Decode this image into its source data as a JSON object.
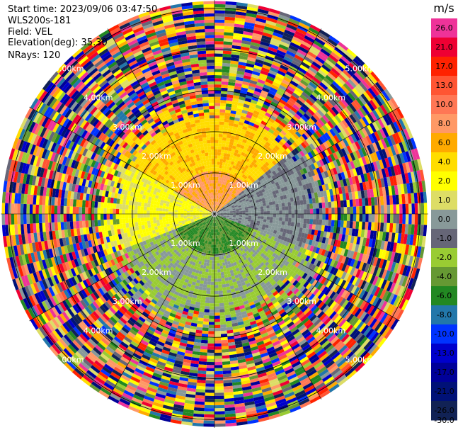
{
  "meta": {
    "start_time": "Start time: 2023/09/06 03:47:50",
    "site": "WLS200s-181",
    "field": "Field: VEL",
    "elevation": "Elevation(deg): 35.30",
    "nrays": "NRays: 120"
  },
  "colorbar": {
    "unit": "m/s",
    "ticks": [
      "26.0",
      "21.0",
      "17.0",
      "13.0",
      "10.0",
      "8.0",
      "6.0",
      "4.0",
      "2.0",
      "1.0",
      "0.0",
      "-1.0",
      "-2.0",
      "-4.0",
      "-6.0",
      "-8.0",
      "-10.0",
      "-13.0",
      "-17.0",
      "-21.0",
      "-26.0",
      "-30.0"
    ],
    "colors": [
      "#ee3399",
      "#ee0033",
      "#ff2200",
      "#ff5533",
      "#ff7755",
      "#ff9966",
      "#ffaa00",
      "#ffdd00",
      "#ffff00",
      "#dddd66",
      "#889999",
      "#666677",
      "#99cc33",
      "#669933",
      "#228822",
      "#2277aa",
      "#0033ff",
      "#0000cc",
      "#000099",
      "#001177",
      "#112255"
    ]
  },
  "chart_data": {
    "type": "heatmap",
    "projection": "polar (PPI)",
    "field": "VEL",
    "units": "m/s",
    "nrays": 120,
    "elevation_deg": 35.3,
    "range_rings_km": [
      1.0,
      2.0,
      3.0,
      4.0,
      5.0
    ],
    "ring_labels": [
      "1.00km",
      "2.00km",
      "3.00km",
      "4.00km",
      "5.00km"
    ],
    "scale_min": -30.0,
    "scale_max": 26.0,
    "grid": true,
    "description_of_field": "near-field: orange/yellow (positive) to the north, grey to the east, green (negative) to the south; noisy multicolor beyond ~2.5 km"
  }
}
